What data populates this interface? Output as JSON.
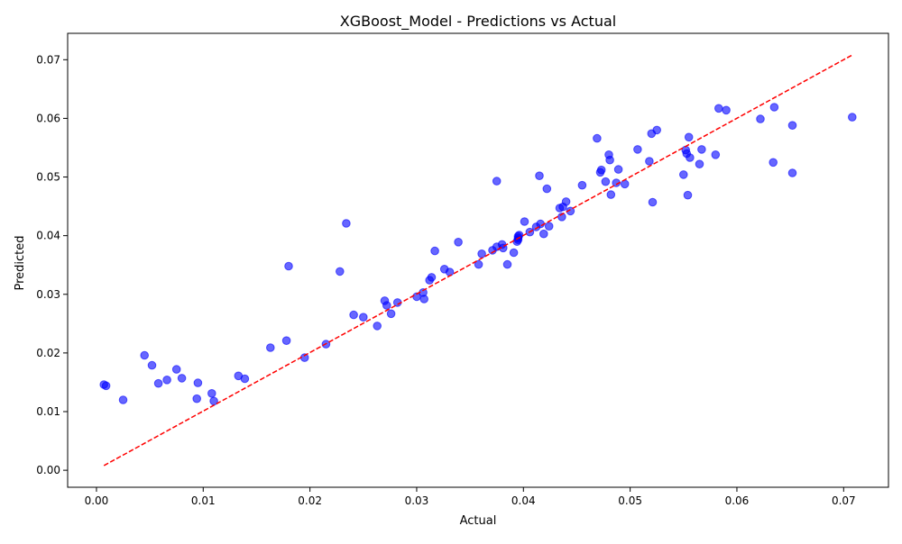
{
  "chart_data": {
    "type": "scatter",
    "title": "XGBoost_Model - Predictions vs Actual",
    "xlabel": "Actual",
    "ylabel": "Predicted",
    "xlim": [
      -0.0027,
      0.0742
    ],
    "ylim": [
      -0.0029,
      0.0745
    ],
    "xticks": [
      "0.00",
      "0.01",
      "0.02",
      "0.03",
      "0.04",
      "0.05",
      "0.06",
      "0.07"
    ],
    "xtick_values": [
      0.0,
      0.01,
      0.02,
      0.03,
      0.04,
      0.05,
      0.06,
      0.07
    ],
    "yticks": [
      "0.00",
      "0.01",
      "0.02",
      "0.03",
      "0.04",
      "0.05",
      "0.06",
      "0.07"
    ],
    "ytick_values": [
      0.0,
      0.01,
      0.02,
      0.03,
      0.04,
      0.05,
      0.06,
      0.07
    ],
    "grid": false,
    "colors": {
      "points": "#0000ff",
      "reference_line": "#ff0000"
    },
    "reference_line": {
      "style": "dashed",
      "from": [
        0.0007,
        0.0008
      ],
      "to": [
        0.0708,
        0.0708
      ]
    },
    "series": [
      {
        "marker": "circle",
        "points": [
          [
            0.0007,
            0.0146
          ],
          [
            0.0009,
            0.0144
          ],
          [
            0.0025,
            0.012
          ],
          [
            0.0045,
            0.0196
          ],
          [
            0.0052,
            0.0179
          ],
          [
            0.0058,
            0.0148
          ],
          [
            0.0066,
            0.0154
          ],
          [
            0.0075,
            0.0172
          ],
          [
            0.008,
            0.0157
          ],
          [
            0.0094,
            0.0122
          ],
          [
            0.0095,
            0.0149
          ],
          [
            0.0108,
            0.0131
          ],
          [
            0.011,
            0.0118
          ],
          [
            0.0133,
            0.0161
          ],
          [
            0.0139,
            0.0156
          ],
          [
            0.0163,
            0.0209
          ],
          [
            0.0178,
            0.0221
          ],
          [
            0.018,
            0.0348
          ],
          [
            0.0195,
            0.0192
          ],
          [
            0.0215,
            0.0215
          ],
          [
            0.0228,
            0.0339
          ],
          [
            0.0234,
            0.0421
          ],
          [
            0.0241,
            0.0265
          ],
          [
            0.025,
            0.0261
          ],
          [
            0.0263,
            0.0246
          ],
          [
            0.027,
            0.0289
          ],
          [
            0.0272,
            0.0281
          ],
          [
            0.0276,
            0.0267
          ],
          [
            0.0282,
            0.0286
          ],
          [
            0.03,
            0.0296
          ],
          [
            0.0306,
            0.0303
          ],
          [
            0.0307,
            0.0292
          ],
          [
            0.0312,
            0.0324
          ],
          [
            0.0314,
            0.0329
          ],
          [
            0.0317,
            0.0374
          ],
          [
            0.0326,
            0.0343
          ],
          [
            0.0331,
            0.0338
          ],
          [
            0.0339,
            0.0389
          ],
          [
            0.0358,
            0.0351
          ],
          [
            0.0361,
            0.0369
          ],
          [
            0.0371,
            0.0375
          ],
          [
            0.0375,
            0.0381
          ],
          [
            0.0375,
            0.0493
          ],
          [
            0.038,
            0.0385
          ],
          [
            0.0381,
            0.0379
          ],
          [
            0.0385,
            0.0351
          ],
          [
            0.0391,
            0.0371
          ],
          [
            0.0394,
            0.039
          ],
          [
            0.0395,
            0.0393
          ],
          [
            0.0395,
            0.0396
          ],
          [
            0.0395,
            0.0399
          ],
          [
            0.0396,
            0.0401
          ],
          [
            0.0401,
            0.0424
          ],
          [
            0.0406,
            0.0406
          ],
          [
            0.0412,
            0.0415
          ],
          [
            0.0415,
            0.0502
          ],
          [
            0.0416,
            0.042
          ],
          [
            0.0419,
            0.0403
          ],
          [
            0.0422,
            0.048
          ],
          [
            0.0424,
            0.0416
          ],
          [
            0.0434,
            0.0447
          ],
          [
            0.0436,
            0.0432
          ],
          [
            0.0437,
            0.0449
          ],
          [
            0.044,
            0.0458
          ],
          [
            0.0444,
            0.0442
          ],
          [
            0.0455,
            0.0486
          ],
          [
            0.0469,
            0.0566
          ],
          [
            0.0472,
            0.0508
          ],
          [
            0.0473,
            0.0512
          ],
          [
            0.0477,
            0.0492
          ],
          [
            0.048,
            0.0538
          ],
          [
            0.0481,
            0.0529
          ],
          [
            0.0482,
            0.047
          ],
          [
            0.0487,
            0.049
          ],
          [
            0.0489,
            0.0513
          ],
          [
            0.0495,
            0.0488
          ],
          [
            0.0507,
            0.0547
          ],
          [
            0.0518,
            0.0527
          ],
          [
            0.052,
            0.0574
          ],
          [
            0.0521,
            0.0457
          ],
          [
            0.0525,
            0.058
          ],
          [
            0.055,
            0.0504
          ],
          [
            0.0552,
            0.0546
          ],
          [
            0.0553,
            0.054
          ],
          [
            0.0554,
            0.0469
          ],
          [
            0.0555,
            0.0568
          ],
          [
            0.0556,
            0.0533
          ],
          [
            0.0565,
            0.0522
          ],
          [
            0.0567,
            0.0547
          ],
          [
            0.058,
            0.0538
          ],
          [
            0.0583,
            0.0617
          ],
          [
            0.059,
            0.0614
          ],
          [
            0.0622,
            0.0599
          ],
          [
            0.0634,
            0.0525
          ],
          [
            0.0635,
            0.0619
          ],
          [
            0.0652,
            0.0588
          ],
          [
            0.0652,
            0.0507
          ],
          [
            0.0708,
            0.0602
          ]
        ]
      }
    ]
  }
}
